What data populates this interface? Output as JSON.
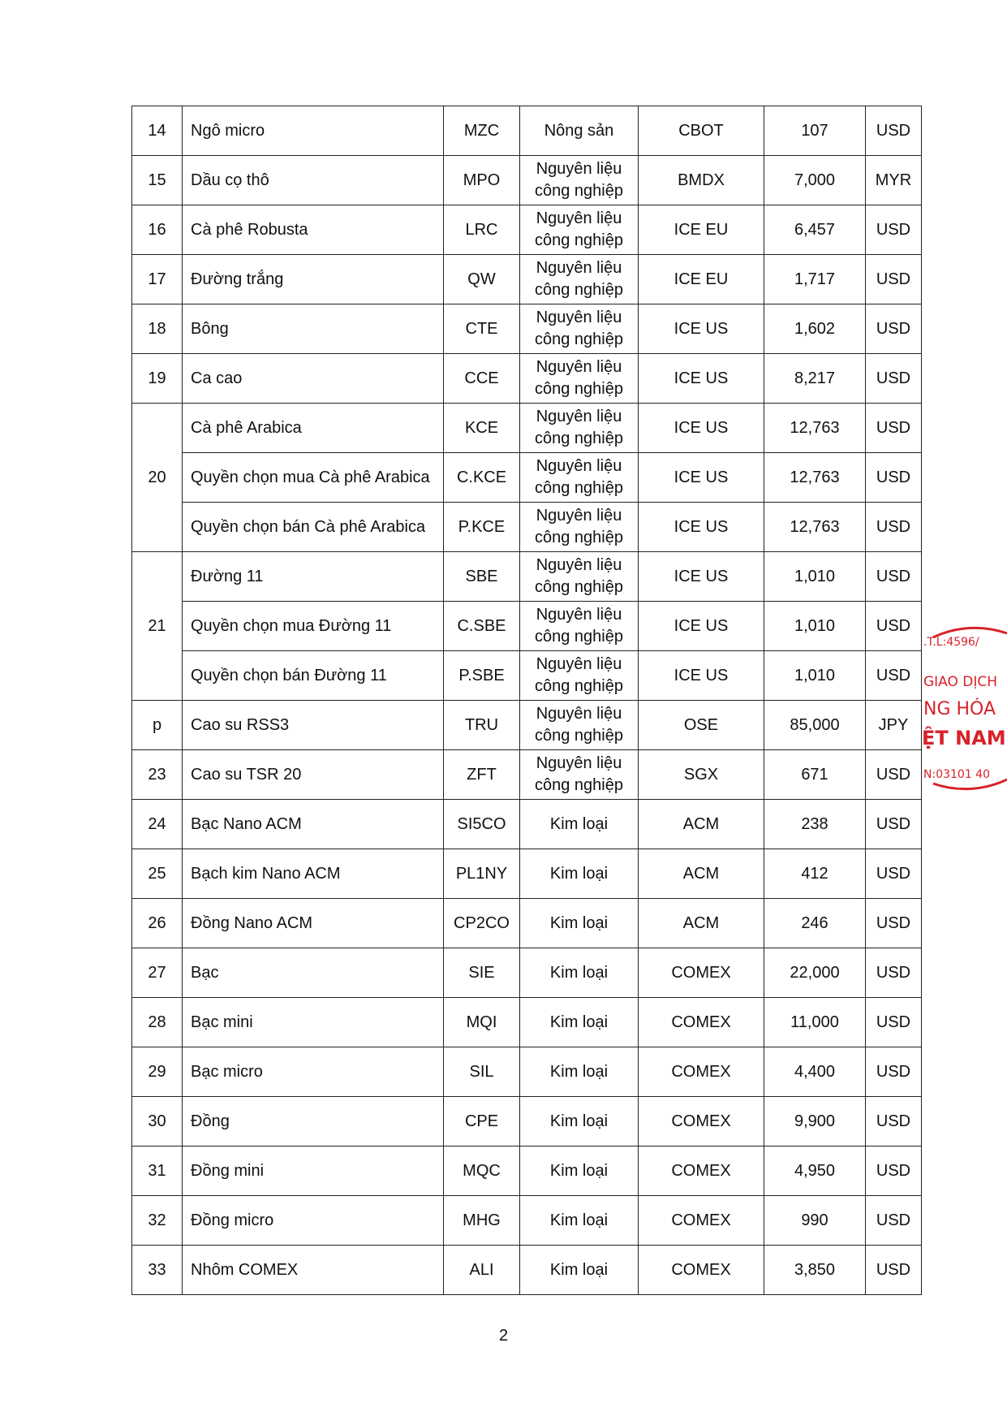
{
  "table": {
    "rows": [
      {
        "no": "14",
        "items": [
          [
            "Ngô micro",
            "MZC",
            "Nông sản",
            "CBOT",
            "107",
            "USD"
          ]
        ]
      },
      {
        "no": "15",
        "items": [
          [
            "Dầu cọ thô",
            "MPO",
            "Nguyên liệu công nghiệp",
            "BMDX",
            "7,000",
            "MYR"
          ]
        ]
      },
      {
        "no": "16",
        "items": [
          [
            "Cà phê Robusta",
            "LRC",
            "Nguyên liệu công nghiệp",
            "ICE EU",
            "6,457",
            "USD"
          ]
        ]
      },
      {
        "no": "17",
        "items": [
          [
            "Đường trắng",
            "QW",
            "Nguyên liệu công nghiệp",
            "ICE EU",
            "1,717",
            "USD"
          ]
        ]
      },
      {
        "no": "18",
        "items": [
          [
            "Bông",
            "CTE",
            "Nguyên liệu công nghiệp",
            "ICE US",
            "1,602",
            "USD"
          ]
        ]
      },
      {
        "no": "19",
        "items": [
          [
            "Ca cao",
            "CCE",
            "Nguyên liệu công nghiệp",
            "ICE US",
            "8,217",
            "USD"
          ]
        ]
      },
      {
        "no": "20",
        "items": [
          [
            "Cà phê Arabica",
            "KCE",
            "Nguyên liệu công nghiệp",
            "ICE US",
            "12,763",
            "USD"
          ],
          [
            "Quyền chọn mua Cà phê Arabica",
            "C.KCE",
            "Nguyên liệu công nghiệp",
            "ICE US",
            "12,763",
            "USD"
          ],
          [
            "Quyền chọn bán Cà phê Arabica",
            "P.KCE",
            "Nguyên liệu công nghiệp",
            "ICE US",
            "12,763",
            "USD"
          ]
        ]
      },
      {
        "no": "21",
        "items": [
          [
            "Đường 11",
            "SBE",
            "Nguyên liệu công nghiệp",
            "ICE US",
            "1,010",
            "USD"
          ],
          [
            "Quyền chọn mua Đường 11",
            "C.SBE",
            "Nguyên liệu công nghiệp",
            "ICE US",
            "1,010",
            "USD"
          ],
          [
            "Quyền chọn bán Đường 11",
            "P.SBE",
            "Nguyên liệu công nghiệp",
            "ICE US",
            "1,010",
            "USD"
          ]
        ]
      },
      {
        "no": "p",
        "items": [
          [
            "Cao su RSS3",
            "TRU",
            "Nguyên liệu công nghiệp",
            "OSE",
            "85,000",
            "JPY"
          ]
        ]
      },
      {
        "no": "23",
        "items": [
          [
            "Cao su TSR 20",
            "ZFT",
            "Nguyên liệu công nghiệp",
            "SGX",
            "671",
            "USD"
          ]
        ]
      },
      {
        "no": "24",
        "items": [
          [
            "Bạc Nano ACM",
            "SI5CO",
            "Kim loại",
            "ACM",
            "238",
            "USD"
          ]
        ]
      },
      {
        "no": "25",
        "items": [
          [
            "Bạch kim Nano ACM",
            "PL1NY",
            "Kim loại",
            "ACM",
            "412",
            "USD"
          ]
        ]
      },
      {
        "no": "26",
        "items": [
          [
            "Đồng Nano ACM",
            "CP2CO",
            "Kim loại",
            "ACM",
            "246",
            "USD"
          ]
        ]
      },
      {
        "no": "27",
        "items": [
          [
            "Bạc",
            "SIE",
            "Kim loại",
            "COMEX",
            "22,000",
            "USD"
          ]
        ]
      },
      {
        "no": "28",
        "items": [
          [
            "Bạc mini",
            "MQI",
            "Kim loại",
            "COMEX",
            "11,000",
            "USD"
          ]
        ]
      },
      {
        "no": "29",
        "items": [
          [
            "Bạc micro",
            "SIL",
            "Kim loại",
            "COMEX",
            "4,400",
            "USD"
          ]
        ]
      },
      {
        "no": "30",
        "items": [
          [
            "Đồng",
            "CPE",
            "Kim loại",
            "COMEX",
            "9,900",
            "USD"
          ]
        ]
      },
      {
        "no": "31",
        "items": [
          [
            "Đồng mini",
            "MQC",
            "Kim loại",
            "COMEX",
            "4,950",
            "USD"
          ]
        ]
      },
      {
        "no": "32",
        "items": [
          [
            "Đồng micro",
            "MHG",
            "Kim loại",
            "COMEX",
            "990",
            "USD"
          ]
        ]
      },
      {
        "no": "33",
        "items": [
          [
            "Nhôm COMEX",
            "ALI",
            "Kim loại",
            "COMEX",
            "3,850",
            "USD"
          ]
        ]
      }
    ]
  },
  "page_number": "2",
  "stamp": {
    "lines": [
      ".T.L:4596/",
      "GIAO DỊCH",
      "NG HÓA",
      "ỆT NAM",
      "N:03101 40"
    ]
  }
}
